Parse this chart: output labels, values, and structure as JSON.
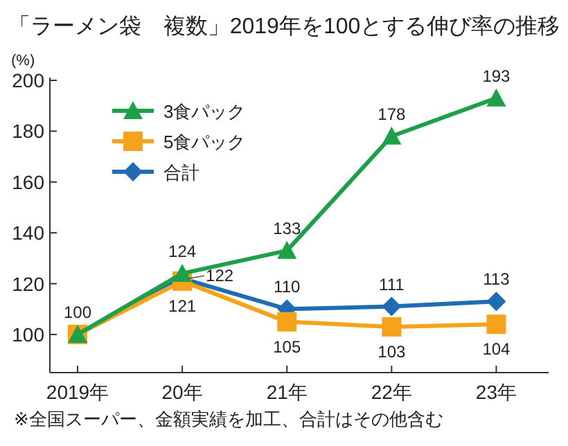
{
  "chart_data": {
    "type": "line",
    "title": "「ラーメン袋　複数」2019年を100とする伸び率の推移",
    "ylabel": "(%)",
    "categories": [
      "2019年",
      "20年",
      "21年",
      "22年",
      "23年"
    ],
    "series": [
      {
        "name": "3食パック",
        "color": "#1ea04a",
        "marker": "triangle",
        "values": [
          100,
          124,
          133,
          178,
          193
        ],
        "value_labels": [
          "100",
          "124",
          "133",
          "178",
          "193"
        ]
      },
      {
        "name": "5食パック",
        "color": "#f5a31a",
        "marker": "square",
        "values": [
          100,
          121,
          105,
          103,
          104
        ],
        "value_labels": [
          null,
          "121",
          "105",
          "103",
          "104"
        ]
      },
      {
        "name": "合計",
        "color": "#1f6cb4",
        "marker": "diamond",
        "values": [
          100,
          122,
          110,
          111,
          113
        ],
        "value_labels": [
          null,
          "122",
          "110",
          "111",
          "113"
        ]
      }
    ],
    "ylim": [
      85,
      200
    ],
    "yticks": [
      100,
      120,
      140,
      160,
      180,
      200
    ],
    "grid": false,
    "legend": "top left",
    "annotations": [
      "※全国スーパー、金額実績を加工、合計はその他含む"
    ]
  }
}
